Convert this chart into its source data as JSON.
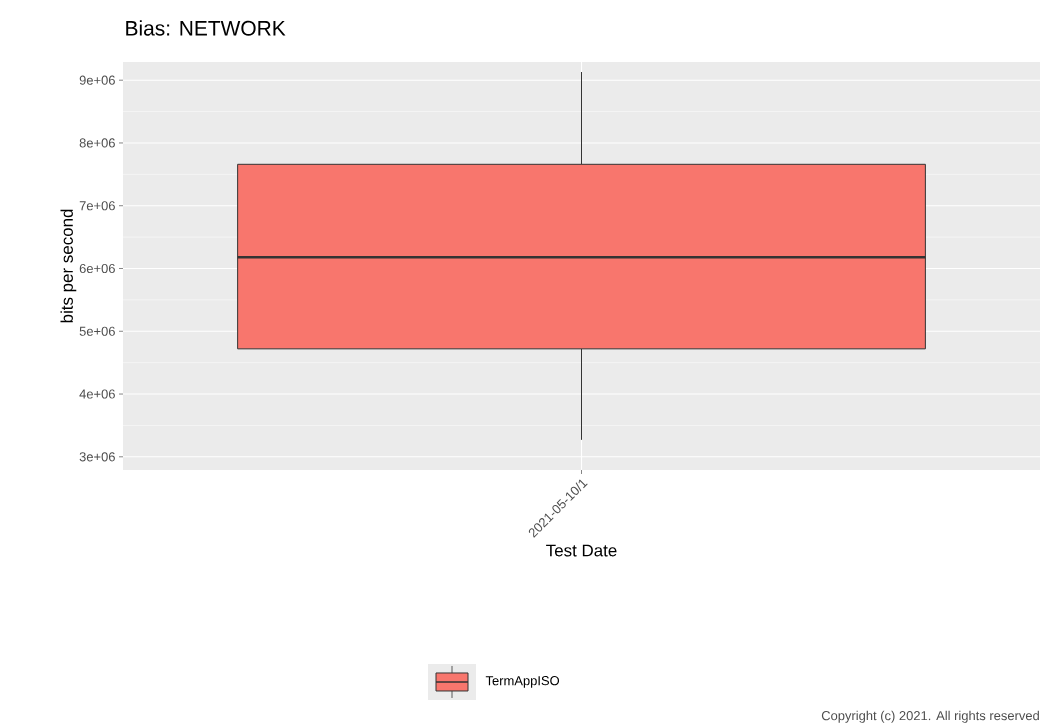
{
  "chart_data": {
    "type": "box",
    "title": "Bias: NETWORK",
    "xlabel": "Test Date",
    "ylabel": "bits per second",
    "categories": [
      "2021-05-10/1"
    ],
    "series": [
      {
        "name": "TermAppISO",
        "color": "#f8766d",
        "boxes": [
          {
            "low": 3270000,
            "q1": 4720000,
            "median": 6180000,
            "q3": 7660000,
            "high": 9130000
          }
        ]
      }
    ],
    "ylim": [
      2790000,
      9290000
    ],
    "yticks": [
      {
        "value": 3000000,
        "label": "3e+06"
      },
      {
        "value": 4000000,
        "label": "4e+06"
      },
      {
        "value": 5000000,
        "label": "5e+06"
      },
      {
        "value": 6000000,
        "label": "6e+06"
      },
      {
        "value": 7000000,
        "label": "7e+06"
      },
      {
        "value": 8000000,
        "label": "8e+06"
      },
      {
        "value": 9000000,
        "label": "9e+06"
      }
    ],
    "grid": true,
    "legend": "bottom",
    "annotations": [
      "Copyright (c) 2021. All rights reserved"
    ]
  }
}
